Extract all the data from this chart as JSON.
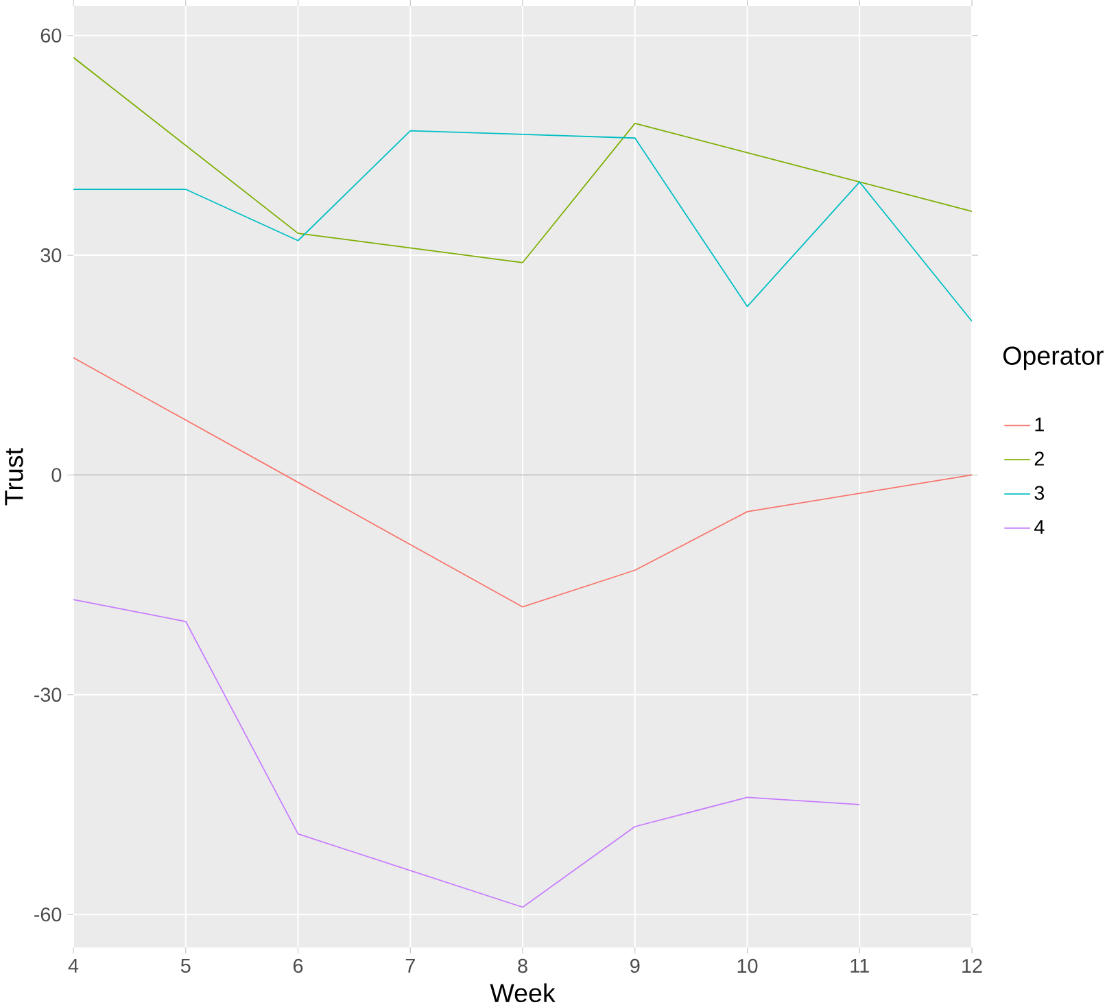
{
  "chart_data": {
    "type": "line",
    "xlabel": "Week",
    "ylabel": "Trust",
    "legend_title": "Operator",
    "legend": "right",
    "grid": true,
    "xlim": [
      4,
      12
    ],
    "xticks": [
      4,
      5,
      6,
      7,
      8,
      9,
      10,
      11,
      12
    ],
    "ylim": [
      -64.5,
      64
    ],
    "yticks": [
      -60,
      -30,
      0,
      30,
      60
    ],
    "ref_lines": [
      {
        "axis": "y",
        "value": 0,
        "color": "#bebebe"
      }
    ],
    "series": [
      {
        "name": "1",
        "color": "#f8766d",
        "x": [
          4,
          6,
          8,
          9,
          10,
          12
        ],
        "values": [
          16,
          -1,
          -18,
          -13,
          -5,
          0
        ]
      },
      {
        "name": "2",
        "color": "#7cae00",
        "x": [
          4,
          6,
          8,
          9,
          11,
          12
        ],
        "values": [
          57,
          33,
          29,
          48,
          40,
          36
        ]
      },
      {
        "name": "3",
        "color": "#00bfc4",
        "x": [
          4,
          5,
          6,
          7,
          9,
          10,
          11,
          12
        ],
        "values": [
          39,
          39,
          32,
          47,
          46,
          23,
          40,
          21
        ]
      },
      {
        "name": "4",
        "color": "#c77cff",
        "x": [
          4,
          5,
          6,
          8,
          9,
          10,
          11
        ],
        "values": [
          -17,
          -20,
          -49,
          -59,
          -48,
          -44,
          -45
        ]
      }
    ]
  }
}
